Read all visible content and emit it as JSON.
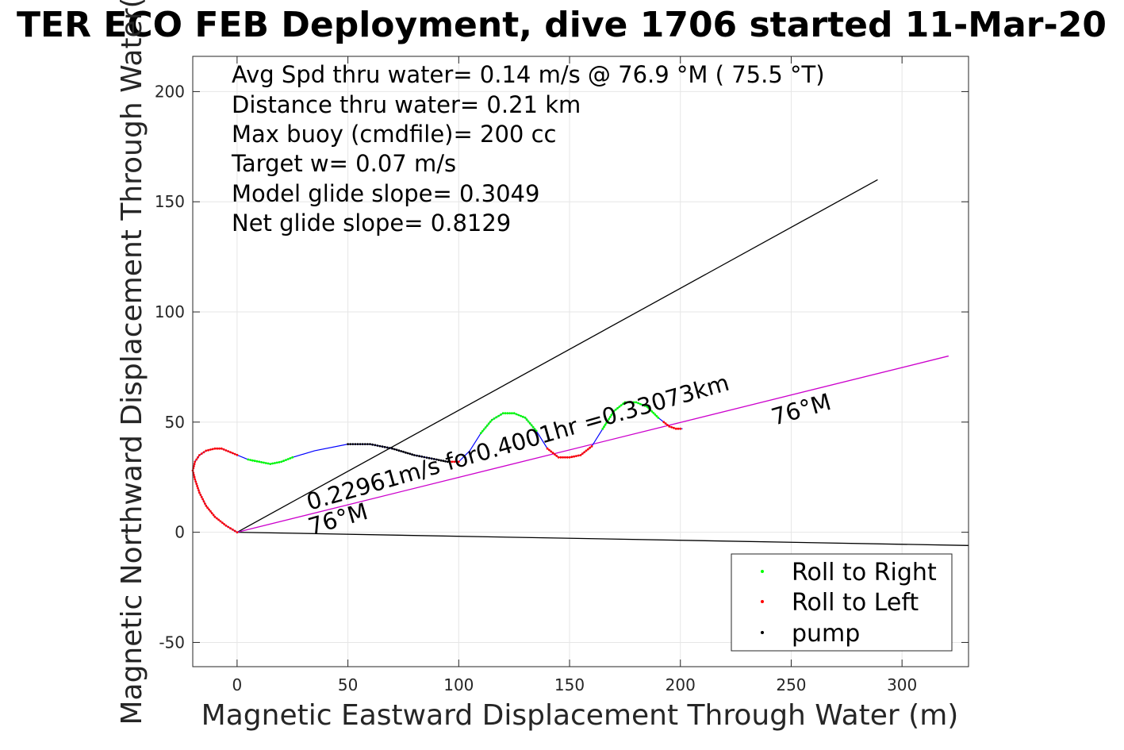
{
  "chart_data": {
    "type": "line",
    "title": "TER ECO FEB Deployment, dive 1706 started 11-Mar-20",
    "xlabel": "Magnetic Eastward Displacement Through Water (m)",
    "ylabel": "Magnetic Northward Displacement Through Water(",
    "xlim": [
      -20,
      330
    ],
    "ylim": [
      -61,
      216
    ],
    "xticks": [
      0,
      50,
      100,
      150,
      200,
      250,
      300
    ],
    "yticks": [
      -50,
      0,
      50,
      100,
      150,
      200
    ],
    "xtick_labels": [
      "0",
      "50",
      "100",
      "150",
      "200",
      "250",
      "300"
    ],
    "ytick_labels": [
      "-50",
      "0",
      "50",
      "100",
      "150",
      "200"
    ],
    "grid": true,
    "legend_position": "bottom-right",
    "annotations": [
      "Avg Spd thru water=  0.14 m/s @  76.9 °M ( 75.5 °T)",
      "Distance thru water=  0.21 km",
      "Max buoy (cmdfile)= 200 cc",
      "Target w= 0.07 m/s",
      "Model glide slope= 0.3049",
      "Net glide slope= 0.8129"
    ],
    "line_labels": {
      "current": "0.22961m/s for0.4001hr =0.33073km",
      "heading_near": "76°M",
      "heading_far": "76°M"
    },
    "legend": [
      {
        "label": "Roll to Right",
        "color": "#00ff00"
      },
      {
        "label": "Roll to Left",
        "color": "#ff0000"
      },
      {
        "label": "pump",
        "color": "#000000"
      }
    ],
    "reference_lines": [
      {
        "x": [
          0,
          289
        ],
        "y": [
          0,
          160
        ],
        "color": "#000000"
      },
      {
        "x": [
          0,
          330
        ],
        "y": [
          0,
          -6
        ],
        "color": "#000000"
      },
      {
        "x": [
          0,
          321
        ],
        "y": [
          0,
          80
        ],
        "color": "#cc00cc"
      }
    ],
    "track": {
      "x": [
        0,
        -5,
        -10,
        -14,
        -17,
        -19,
        -20,
        -19,
        -17,
        -14,
        -10,
        -7,
        5,
        10,
        15,
        20,
        25,
        35,
        50,
        60,
        70,
        80,
        90,
        95,
        100,
        105,
        110,
        115,
        120,
        125,
        130,
        135,
        140,
        145,
        150,
        155,
        160,
        165,
        170,
        175,
        180,
        185,
        190,
        195,
        198,
        201
      ],
      "y": [
        0,
        3,
        7,
        12,
        18,
        24,
        28,
        32,
        35,
        37,
        38,
        38,
        33,
        32,
        31,
        32,
        34,
        37,
        40,
        40,
        38,
        35,
        33,
        32,
        32,
        37,
        45,
        51,
        54,
        54,
        52,
        46,
        38,
        34,
        34,
        35,
        39,
        47,
        55,
        59,
        59,
        57,
        52,
        48,
        47,
        47
      ]
    },
    "roll_right_segments": [
      [
        5,
        25
      ],
      [
        110,
        135
      ],
      [
        165,
        190
      ]
    ],
    "roll_left_segments": [
      [
        -20,
        0
      ],
      [
        95,
        100
      ],
      [
        140,
        160
      ],
      [
        192,
        201
      ]
    ],
    "pump_segments": [
      [
        50,
        95
      ]
    ]
  }
}
